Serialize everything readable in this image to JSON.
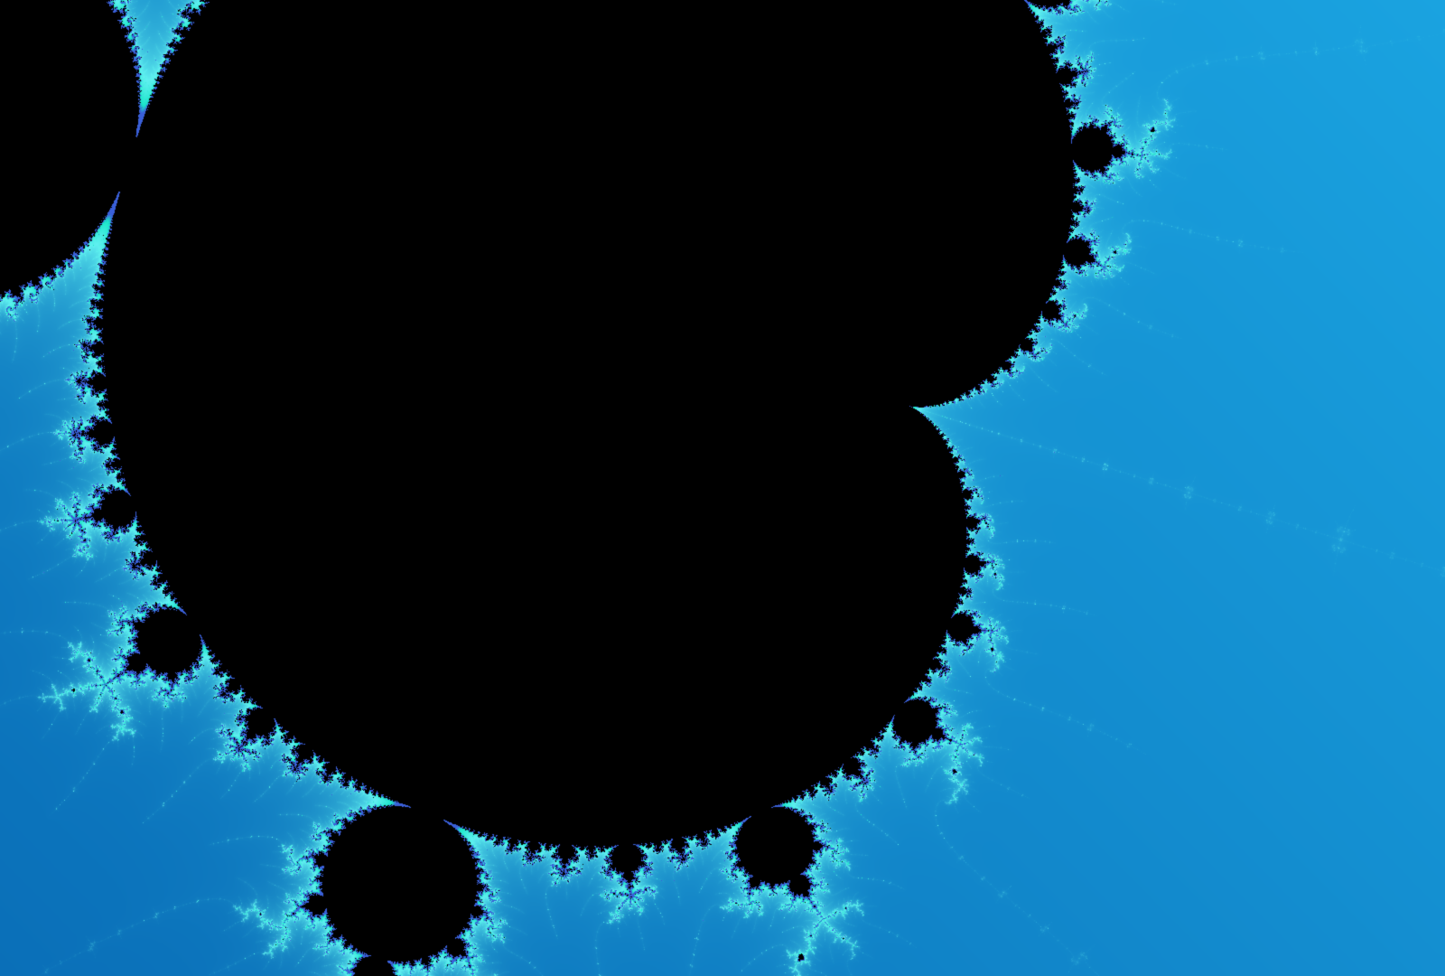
{
  "image": {
    "subject": "mandelbrot-minibrot",
    "palette": {
      "background_light": "#1aa3e0",
      "background_dark": "#0a6fb8",
      "filament": "#5ff0f0",
      "glow": "#19e6c8",
      "edge": "#3a5fd8",
      "interior": "#000000"
    }
  }
}
